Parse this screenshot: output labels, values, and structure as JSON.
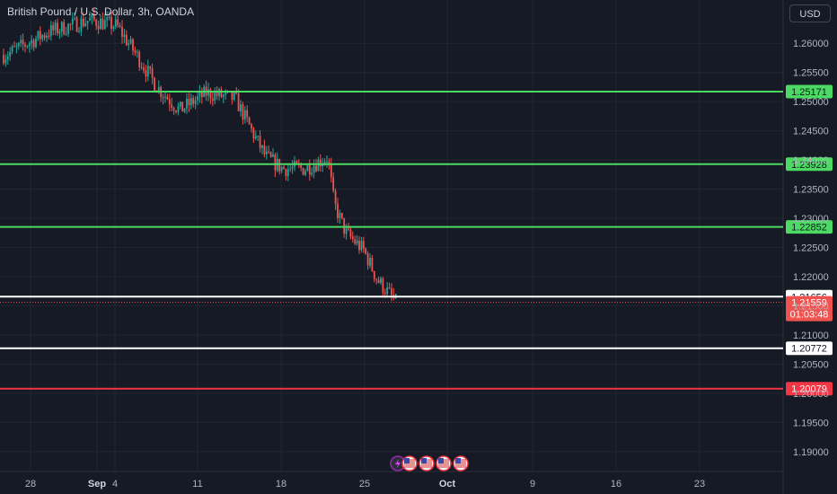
{
  "title": "British Pound / U.S. Dollar, 3h, OANDA",
  "currency": "USD",
  "colors": {
    "background": "#161a25",
    "grid": "#222631",
    "up": "#26a69a",
    "down": "#ef5350",
    "resistance": "#4cd964",
    "support": "#ffffff",
    "target": "#f23645",
    "text": "#b2b5be"
  },
  "price_scale": [
    "1.26000",
    "1.25500",
    "1.25000",
    "1.24500",
    "1.24000",
    "1.23500",
    "1.23000",
    "1.22500",
    "1.22000",
    "1.21500",
    "1.21000",
    "1.20500",
    "1.20000",
    "1.19500",
    "1.19000"
  ],
  "time_scale": [
    "28",
    "Sep",
    "4",
    "11",
    "18",
    "25",
    "Oct",
    "9",
    "16",
    "23"
  ],
  "current_price": {
    "value": "1.21559",
    "countdown": "01:03:48"
  },
  "events": [
    "lightning-icon",
    "us-flag-icon",
    "us-flag-icon",
    "us-flag-icon",
    "us-flag-icon"
  ],
  "chart_data": {
    "type": "candlestick",
    "title": "British Pound / U.S. Dollar, 3h, OANDA",
    "y_unit": "USD",
    "ylim": [
      1.188,
      1.264
    ],
    "x_ticks": [
      "28",
      "Sep",
      "4",
      "11",
      "18",
      "25",
      "Oct",
      "9",
      "16",
      "23"
    ],
    "y_ticks": [
      1.26,
      1.255,
      1.25,
      1.245,
      1.24,
      1.235,
      1.23,
      1.225,
      1.22,
      1.215,
      1.21,
      1.205,
      1.2,
      1.195,
      1.19
    ],
    "grid": true,
    "horizontal_levels": [
      {
        "value": 1.25171,
        "label": "1.25171",
        "role": "resistance"
      },
      {
        "value": 1.23928,
        "label": "1.23928",
        "role": "resistance"
      },
      {
        "value": 1.22852,
        "label": "1.22852",
        "role": "resistance"
      },
      {
        "value": 1.21656,
        "label": "1.21656",
        "role": "support"
      },
      {
        "value": 1.20772,
        "label": "1.20772",
        "role": "support"
      },
      {
        "value": 1.20079,
        "label": "1.20079",
        "role": "target"
      }
    ],
    "last_price": 1.21559,
    "close_path": [
      {
        "date": "Aug 28",
        "close": 1.258
      },
      {
        "date": "Aug 30",
        "close": 1.262
      },
      {
        "date": "Sep 1",
        "close": 1.264
      },
      {
        "date": "Sep 4",
        "close": 1.263
      },
      {
        "date": "Sep 6",
        "close": 1.258
      },
      {
        "date": "Sep 8",
        "close": 1.2525
      },
      {
        "date": "Sep 10",
        "close": 1.2485
      },
      {
        "date": "Sep 12",
        "close": 1.2515
      },
      {
        "date": "Sep 14",
        "close": 1.2505
      },
      {
        "date": "Sep 15",
        "close": 1.2445
      },
      {
        "date": "Sep 16",
        "close": 1.2405
      },
      {
        "date": "Sep 18",
        "close": 1.2385
      },
      {
        "date": "Sep 20",
        "close": 1.2385
      },
      {
        "date": "Sep 21",
        "close": 1.2405
      },
      {
        "date": "Sep 22",
        "close": 1.2325
      },
      {
        "date": "Sep 24",
        "close": 1.2275
      },
      {
        "date": "Sep 25",
        "close": 1.2245
      },
      {
        "date": "Sep 26",
        "close": 1.2195
      },
      {
        "date": "Sep 27",
        "close": 1.21559
      }
    ]
  }
}
